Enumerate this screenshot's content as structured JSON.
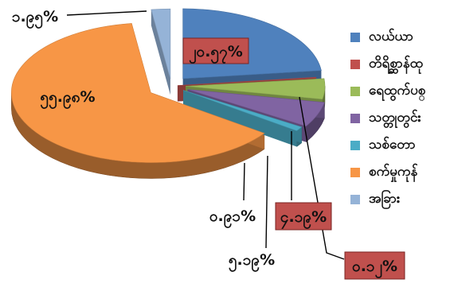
{
  "chart_data": {
    "type": "pie",
    "style": "3d-exploded",
    "title": "",
    "legend_position": "right",
    "series": [
      {
        "name": "လယ်ယာ",
        "value": 20.57,
        "label": "၂၀.၅၇%",
        "color": "#4f81bd"
      },
      {
        "name": "တိရိစ္ဆာန်ထု",
        "value": 0.12,
        "label": "၀.၁၂%",
        "color": "#c0504d"
      },
      {
        "name": "ရေထွက်ပစ္",
        "value": 4.19,
        "label": "၄.၁၉%",
        "color": "#9bbb59"
      },
      {
        "name": "သတ္တုတွင်း",
        "value": 5.19,
        "label": "၅.၁၉%",
        "color": "#8064a2"
      },
      {
        "name": "သစ်တော",
        "value": 0.91,
        "label": "၀.၉၁%",
        "color": "#4bacc6"
      },
      {
        "name": "စက်မှုကုန်",
        "value": 55.98,
        "label": "၅၅.၉၈%",
        "color": "#f79646"
      },
      {
        "name": "အခြား",
        "value": 1.95,
        "label": "၁.၉၅%",
        "color": "#95b3d7"
      }
    ]
  }
}
